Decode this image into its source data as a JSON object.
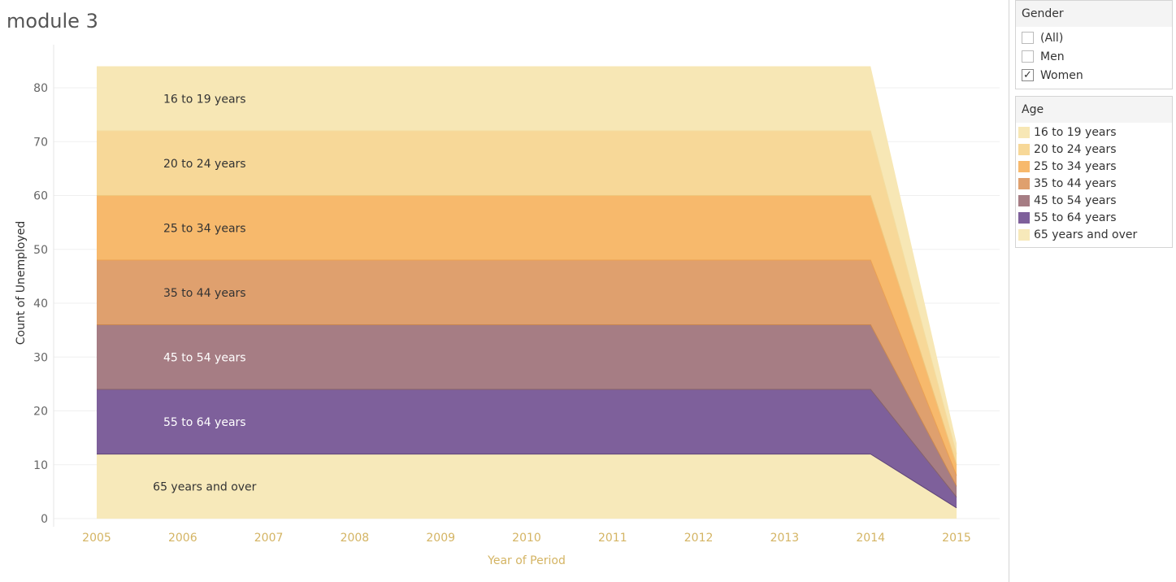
{
  "title": "module 3",
  "filters": {
    "gender": {
      "header": "Gender",
      "options": [
        {
          "label": "(All)",
          "checked": false
        },
        {
          "label": "Men",
          "checked": false
        },
        {
          "label": "Women",
          "checked": true
        }
      ]
    },
    "age": {
      "header": "Age",
      "items": [
        {
          "label": "16 to 19 years",
          "color": "#f7e7b5"
        },
        {
          "label": "20 to 24 years",
          "color": "#f7d898"
        },
        {
          "label": "25 to 34 years",
          "color": "#f7b96c"
        },
        {
          "label": "35 to 44 years",
          "color": "#dfa06e"
        },
        {
          "label": "45 to 54 years",
          "color": "#a67d84"
        },
        {
          "label": "55 to 64 years",
          "color": "#7e609b"
        },
        {
          "label": "65 years and over",
          "color": "#f7e9ba"
        }
      ]
    }
  },
  "chart_data": {
    "type": "area",
    "stacked": true,
    "xlabel": "Year of Period",
    "ylabel": "Count of Unemployed",
    "x": [
      2005,
      2006,
      2007,
      2008,
      2009,
      2010,
      2011,
      2012,
      2013,
      2014,
      2015
    ],
    "y_ticks": [
      0,
      10,
      20,
      30,
      40,
      50,
      60,
      70,
      80
    ],
    "ylim": [
      -1.5,
      88
    ],
    "grid": true,
    "series": [
      {
        "name": "65 years and over",
        "color": "#f7e9ba",
        "label_color": "#333333",
        "values": [
          12,
          12,
          12,
          12,
          12,
          12,
          12,
          12,
          12,
          12,
          2
        ]
      },
      {
        "name": "55 to 64 years",
        "color": "#7e609b",
        "stroke": "#5e4478",
        "label_color": "#ffffff",
        "values": [
          12,
          12,
          12,
          12,
          12,
          12,
          12,
          12,
          12,
          12,
          2
        ]
      },
      {
        "name": "45 to 54 years",
        "color": "#a67d84",
        "stroke": "#86626a",
        "label_color": "#ffffff",
        "values": [
          12,
          12,
          12,
          12,
          12,
          12,
          12,
          12,
          12,
          12,
          2
        ]
      },
      {
        "name": "35 to 44 years",
        "color": "#dfa06e",
        "stroke": "#c98751",
        "label_color": "#333333",
        "values": [
          12,
          12,
          12,
          12,
          12,
          12,
          12,
          12,
          12,
          12,
          2
        ]
      },
      {
        "name": "25 to 34 years",
        "color": "#f7b96c",
        "stroke": "#eba152",
        "label_color": "#333333",
        "values": [
          12,
          12,
          12,
          12,
          12,
          12,
          12,
          12,
          12,
          12,
          2
        ]
      },
      {
        "name": "20 to 24 years",
        "color": "#f7d898",
        "stroke": "#efc87e",
        "label_color": "#333333",
        "values": [
          12,
          12,
          12,
          12,
          12,
          12,
          12,
          12,
          12,
          12,
          2
        ]
      },
      {
        "name": "16 to 19 years",
        "color": "#f7e7b5",
        "stroke": "#f3dda0",
        "label_color": "#333333",
        "values": [
          12,
          12,
          12,
          12,
          12,
          12,
          12,
          12,
          12,
          12,
          2
        ]
      }
    ]
  }
}
